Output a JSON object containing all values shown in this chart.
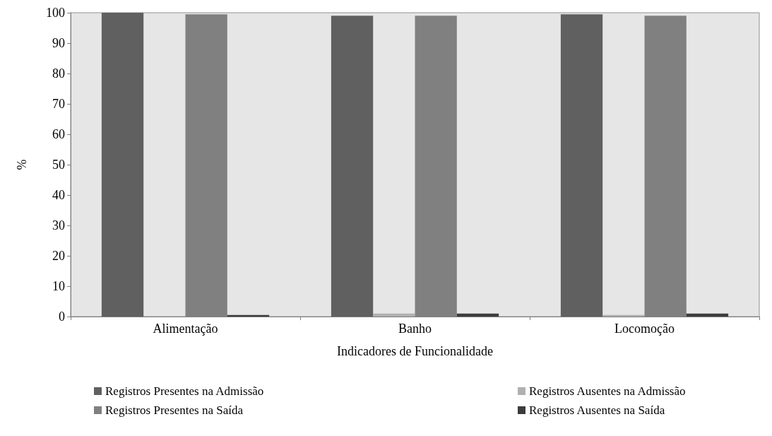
{
  "chart_data": {
    "type": "bar",
    "xlabel": "Indicadores de Funcionalidade",
    "ylabel": "%",
    "categories": [
      "Alimentação",
      "Banho",
      "Locomoção"
    ],
    "series": [
      {
        "name": "Registros Presentes na Admissão",
        "color": "#606060",
        "values": [
          100,
          99,
          99.5
        ]
      },
      {
        "name": "Registros Ausentes na Admissão",
        "color": "#b0b0b0",
        "values": [
          0,
          1,
          0.5
        ]
      },
      {
        "name": "Registros Presentes na Saída",
        "color": "#808080",
        "values": [
          99.5,
          99,
          99
        ]
      },
      {
        "name": "Registros Ausentes na Saída",
        "color": "#3c3c3c",
        "values": [
          0.5,
          1,
          1
        ]
      }
    ],
    "ylim": [
      0,
      100
    ],
    "yticks": [
      0,
      10,
      20,
      30,
      40,
      50,
      60,
      70,
      80,
      90,
      100
    ],
    "grid": false,
    "legend": "bottom"
  }
}
